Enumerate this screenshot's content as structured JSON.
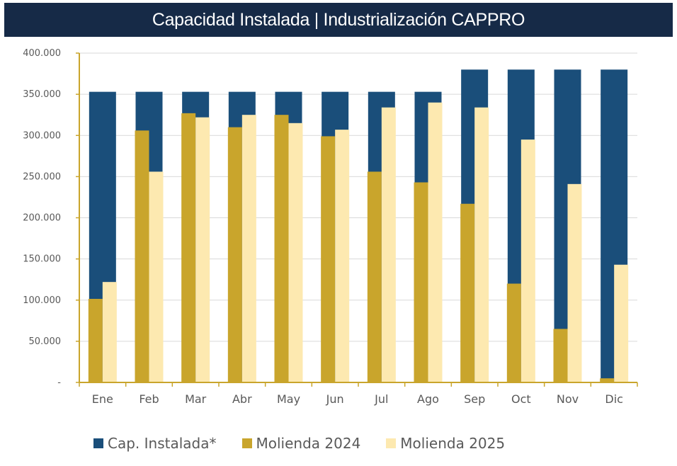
{
  "chart_data": {
    "type": "bar",
    "title": "Capacidad Instalada | Industrialización CAPPRO",
    "xlabel": "",
    "ylabel": "",
    "ylim": [
      0,
      400000
    ],
    "yticks": [
      0,
      50000,
      100000,
      150000,
      200000,
      250000,
      300000,
      350000,
      400000
    ],
    "ytick_labels": [
      "-",
      "50.000",
      "100.000",
      "150.000",
      "200.000",
      "250.000",
      "300.000",
      "350.000",
      "400.000"
    ],
    "grid": true,
    "legend_position": "bottom",
    "categories": [
      "Ene",
      "Feb",
      "Mar",
      "Abr",
      "May",
      "Jun",
      "Jul",
      "Ago",
      "Sep",
      "Oct",
      "Nov",
      "Dic"
    ],
    "series": [
      {
        "name": "Cap. Instalada*",
        "color": "#1a4e7a",
        "values": [
          353000,
          353000,
          353000,
          353000,
          353000,
          353000,
          353000,
          353000,
          380000,
          380000,
          380000,
          380000
        ]
      },
      {
        "name": "Molienda 2024",
        "color": "#c9a52c",
        "values": [
          101500,
          306000,
          327000,
          310000,
          325000,
          299000,
          256000,
          243000,
          217000,
          120000,
          65000,
          5000
        ]
      },
      {
        "name": "Molienda 2025",
        "color": "#fde9b0",
        "values": [
          122000,
          256000,
          322000,
          325000,
          315000,
          307000,
          334000,
          340000,
          334000,
          295000,
          241000,
          143000
        ]
      }
    ]
  },
  "colors": {
    "header_bg": "#162a47",
    "axis": "#c9a52c",
    "grid": "#d9d9d9"
  }
}
